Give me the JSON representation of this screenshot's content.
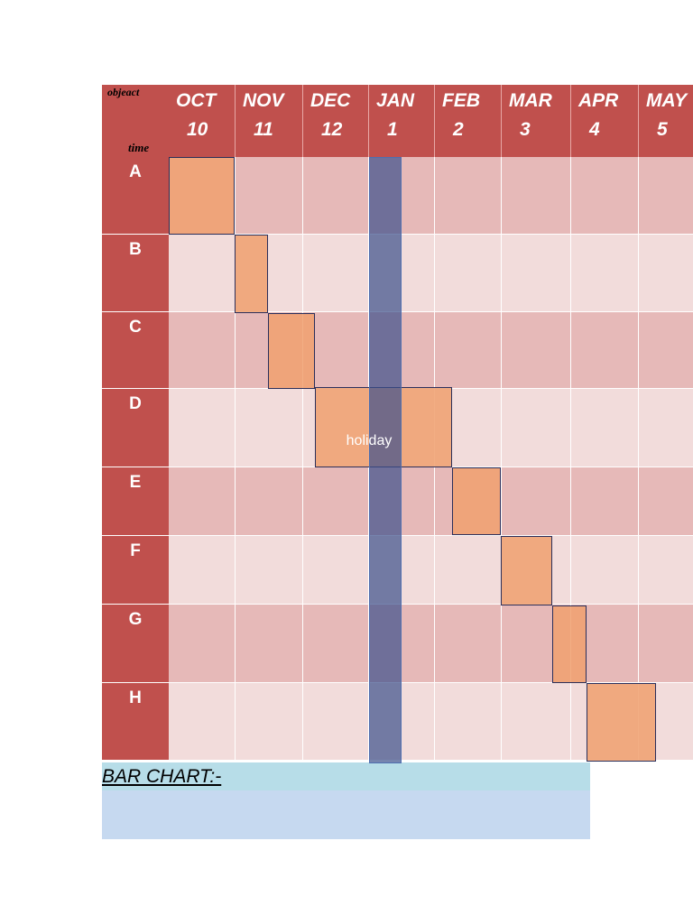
{
  "table": {
    "corner": {
      "top": "objeact",
      "bottom": "time"
    },
    "columns": [
      {
        "month": "OCT",
        "num": "10"
      },
      {
        "month": "NOV",
        "num": "11"
      },
      {
        "month": "DEC",
        "num": "12"
      },
      {
        "month": "JAN",
        "num": "1"
      },
      {
        "month": "FEB",
        "num": "2"
      },
      {
        "month": "MAR",
        "num": "3"
      },
      {
        "month": "APR",
        "num": "4"
      },
      {
        "month": "MAY",
        "num": "5"
      }
    ],
    "rows": [
      "A",
      "B",
      "C",
      "D",
      "E",
      "F",
      "G",
      "H"
    ],
    "holiday": "holiday"
  },
  "footer": {
    "title": "BAR CHART:-"
  }
}
